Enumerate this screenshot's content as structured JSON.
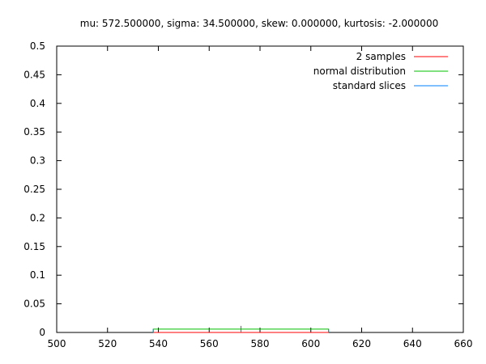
{
  "chart_data": {
    "type": "line",
    "title": "mu: 572.500000,  sigma: 34.500000,  skew: 0.000000,  kurtosis: -2.000000",
    "xlabel": "",
    "ylabel": "",
    "xlim": [
      500,
      660
    ],
    "ylim": [
      0,
      0.5
    ],
    "x_ticks": [
      "500",
      "520",
      "540",
      "560",
      "580",
      "600",
      "620",
      "640",
      "660"
    ],
    "y_ticks": [
      "0",
      "0.05",
      "0.1",
      "0.15",
      "0.2",
      "0.25",
      "0.3",
      "0.35",
      "0.4",
      "0.45",
      "0.5"
    ],
    "grid": false,
    "legend_position": "top-right",
    "series": [
      {
        "name": "2 samples",
        "color": "#ff0000",
        "x": [
          538,
          607
        ],
        "y": [
          0,
          0
        ]
      },
      {
        "name": "normal distribution",
        "color": "#00c000",
        "x": [
          538,
          538,
          607,
          607
        ],
        "y": [
          0,
          0.0058,
          0.0058,
          0
        ]
      },
      {
        "name": "standard slices",
        "color": "#0080ff",
        "segments": [
          {
            "x": [
              538,
              538
            ],
            "y": [
              0,
              0.0058
            ]
          },
          {
            "x": [
              572.5,
              572.5
            ],
            "y": [
              0,
              0.0115
            ]
          },
          {
            "x": [
              607,
              607
            ],
            "y": [
              0,
              0.0058
            ]
          }
        ]
      }
    ]
  }
}
